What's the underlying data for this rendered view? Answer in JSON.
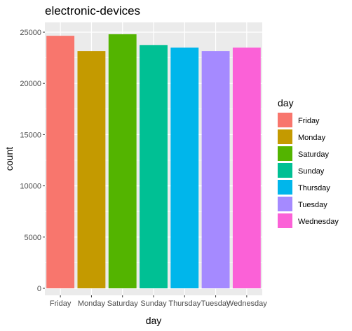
{
  "chart_data": {
    "type": "bar",
    "title": "electronic-devices",
    "xlabel": "day",
    "ylabel": "count",
    "categories": [
      "Friday",
      "Monday",
      "Saturday",
      "Sunday",
      "Thursday",
      "Tuesday",
      "Wednesday"
    ],
    "values": [
      24650,
      23150,
      24800,
      23750,
      23500,
      23150,
      23500
    ],
    "colors": [
      "#F8766D",
      "#C49A00",
      "#53B400",
      "#00C094",
      "#00B6EB",
      "#A58AFF",
      "#FB61D7"
    ],
    "y_ticks": [
      0,
      5000,
      10000,
      15000,
      20000,
      25000
    ],
    "ylim": [
      0,
      25000
    ],
    "grid": true,
    "legend": {
      "title": "day",
      "placement": "right",
      "entries": [
        "Friday",
        "Monday",
        "Saturday",
        "Sunday",
        "Thursday",
        "Tuesday",
        "Wednesday"
      ]
    },
    "panel_background": "#EBEBEB",
    "grid_color": "#FFFFFF"
  }
}
